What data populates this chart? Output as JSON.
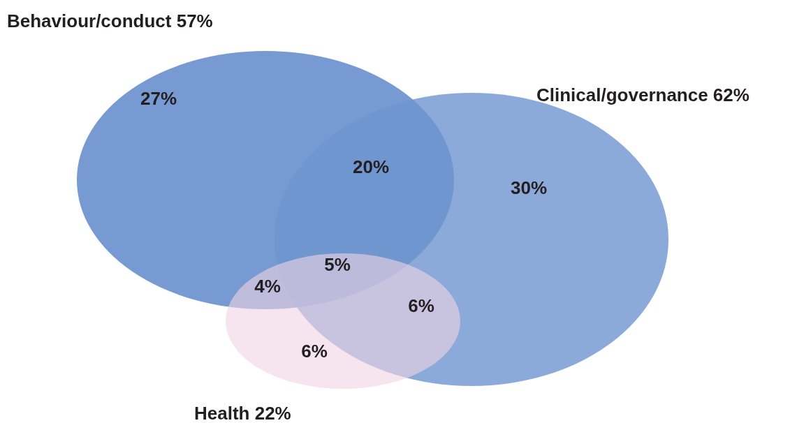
{
  "chart_data": {
    "type": "other",
    "categories": [
      "Behaviour/conduct",
      "Clinical/governance",
      "Health"
    ],
    "values": [
      57,
      62,
      22
    ],
    "value_labels": [
      "57%",
      "62%",
      "22%"
    ],
    "colors": [
      "#6f95cf",
      "#6f95cf",
      "#f0d4e3"
    ],
    "annotations": [
      "27%",
      "20%",
      "30%",
      "5%",
      "4%",
      "6%",
      "6%"
    ]
  }
}
